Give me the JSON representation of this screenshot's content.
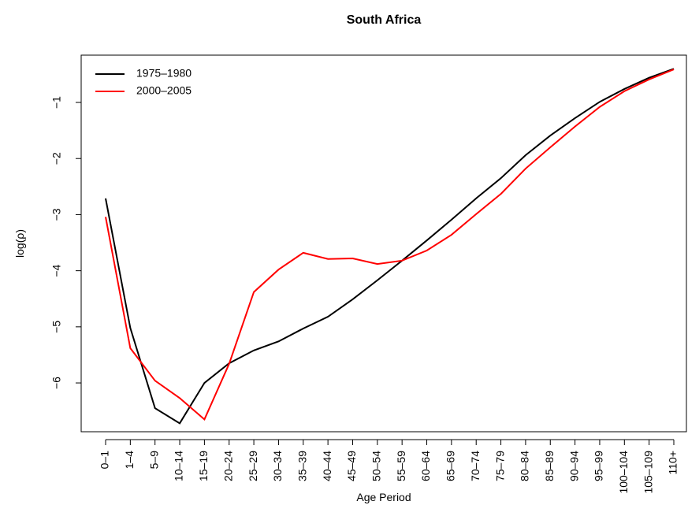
{
  "chart_data": {
    "type": "line",
    "title": "South Africa",
    "x_label": "Age Period",
    "y_label": "log(ρ)",
    "categories": [
      "0–1",
      "1–4",
      "5–9",
      "10–14",
      "15–19",
      "20–24",
      "25–29",
      "30–34",
      "35–39",
      "40–44",
      "45–49",
      "50–54",
      "55–59",
      "60–64",
      "65–69",
      "70–74",
      "75–79",
      "80–84",
      "85–89",
      "90–94",
      "95–99",
      "100–104",
      "105–109",
      "110+"
    ],
    "series": [
      {
        "name": "1975–1980",
        "color": "#000000",
        "values": [
          -2.71,
          -5.02,
          -6.45,
          -6.72,
          -6.0,
          -5.65,
          -5.42,
          -5.26,
          -5.03,
          -4.82,
          -4.51,
          -4.17,
          -3.82,
          -3.46,
          -3.09,
          -2.71,
          -2.35,
          -1.94,
          -1.59,
          -1.28,
          -0.99,
          -0.76,
          -0.56,
          -0.4
        ]
      },
      {
        "name": "2000–2005",
        "color": "#ff0000",
        "values": [
          -3.04,
          -5.38,
          -5.96,
          -6.27,
          -6.65,
          -5.66,
          -4.38,
          -3.98,
          -3.68,
          -3.79,
          -3.78,
          -3.88,
          -3.82,
          -3.64,
          -3.36,
          -2.99,
          -2.63,
          -2.18,
          -1.8,
          -1.43,
          -1.08,
          -0.8,
          -0.59,
          -0.41
        ]
      }
    ],
    "ylim": [
      -6.87,
      -0.157
    ],
    "yticks": [
      {
        "value": -6,
        "label": "−6"
      },
      {
        "value": -5,
        "label": "−5"
      },
      {
        "value": -4,
        "label": "−4"
      },
      {
        "value": -3,
        "label": "−3"
      },
      {
        "value": -2,
        "label": "−2"
      },
      {
        "value": -1,
        "label": "−1"
      }
    ],
    "legend": "top-left"
  }
}
